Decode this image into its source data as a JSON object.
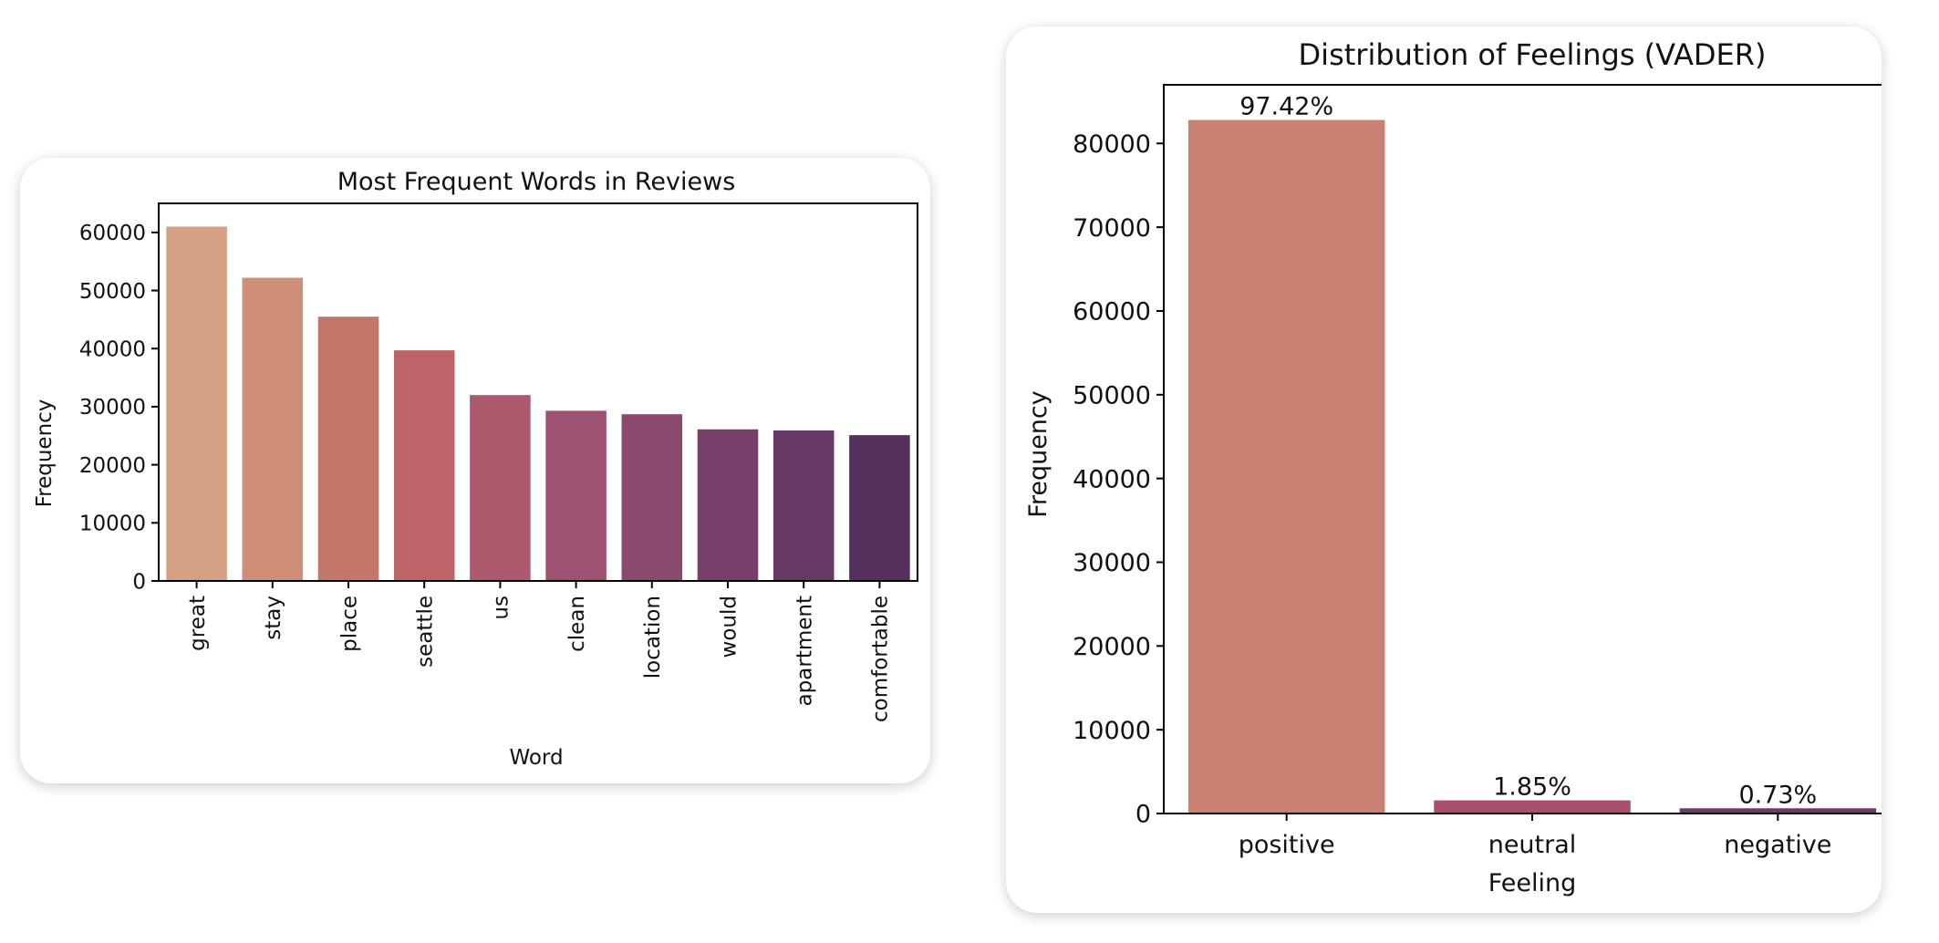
{
  "chart_data": [
    {
      "type": "bar",
      "title": "Most Frequent Words in Reviews",
      "xlabel": "Word",
      "ylabel": "Frequency",
      "categories": [
        "great",
        "stay",
        "place",
        "seattle",
        "us",
        "clean",
        "location",
        "would",
        "apartment",
        "comfortable"
      ],
      "values": [
        61000,
        52200,
        45500,
        39700,
        32000,
        29300,
        28700,
        26100,
        25900,
        25100
      ],
      "ylim": [
        0,
        65000
      ],
      "yticks": [
        "0",
        "10000",
        "20000",
        "30000",
        "40000",
        "50000",
        "60000"
      ],
      "ytick_values": [
        0,
        10000,
        20000,
        30000,
        40000,
        50000,
        60000
      ],
      "colors": [
        "#d4a083",
        "#cf8e78",
        "#c5766a",
        "#bd6468",
        "#ad5a6e",
        "#9e5170",
        "#8a4a6e",
        "#773f6a",
        "#673864",
        "#56315d"
      ],
      "tick_rotation": -90,
      "grid": false
    },
    {
      "type": "bar",
      "title": "Distribution of Feelings (VADER)",
      "xlabel": "Feeling",
      "ylabel": "Frequency",
      "categories": [
        "positive",
        "neutral",
        "negative"
      ],
      "values": [
        82800,
        1570,
        620
      ],
      "data_labels": [
        "97.42%",
        "1.85%",
        "0.73%"
      ],
      "ylim": [
        0,
        87000
      ],
      "yticks": [
        "0",
        "10000",
        "20000",
        "30000",
        "40000",
        "50000",
        "60000",
        "70000",
        "80000"
      ],
      "ytick_values": [
        0,
        10000,
        20000,
        30000,
        40000,
        50000,
        60000,
        70000,
        80000
      ],
      "colors": [
        "#c98172",
        "#a74f6d",
        "#6b3a67"
      ],
      "grid": false
    }
  ]
}
